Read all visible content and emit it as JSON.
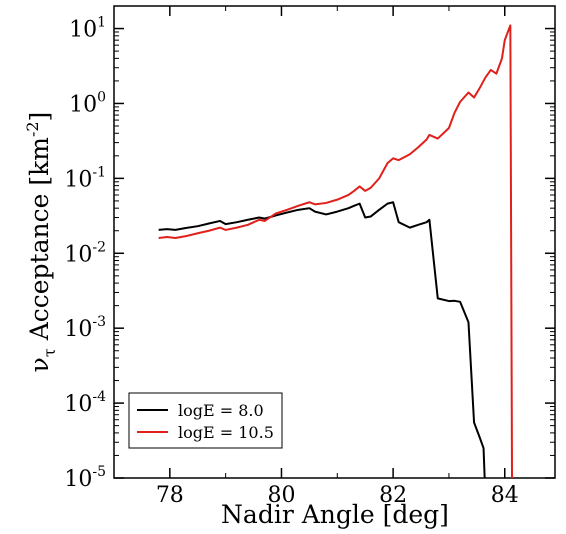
{
  "chart_data": {
    "type": "line",
    "title": "",
    "xlabel": "Nadir Angle [deg]",
    "ylabel": {
      "nu": "ν",
      "tau": "τ",
      "text": " Acceptance [km",
      "sup": "-2",
      "close": "]"
    },
    "xlim": [
      77,
      84.9
    ],
    "x_ticks": [
      78,
      80,
      82,
      84
    ],
    "y_scale": "log",
    "ylim": [
      1e-05,
      20
    ],
    "y_tick_exponents": [
      1,
      0,
      -1,
      -2,
      -3,
      -4,
      -5
    ],
    "y_tick_base": "10",
    "legend_position": "bottom-left",
    "grid": false,
    "series": [
      {
        "name": "logE = 8.0",
        "color": "#000000",
        "x": [
          77.8,
          77.95,
          78.1,
          78.3,
          78.5,
          78.7,
          78.9,
          79.0,
          79.2,
          79.4,
          79.6,
          79.7,
          79.9,
          80.1,
          80.3,
          80.5,
          80.6,
          80.8,
          81.0,
          81.2,
          81.3,
          81.4,
          81.5,
          81.6,
          81.75,
          81.9,
          82.0,
          82.1,
          82.3,
          82.45,
          82.6,
          82.65,
          82.8,
          83.0,
          83.1,
          83.2,
          83.35,
          83.45,
          83.55,
          83.62
        ],
        "y": [
          0.0205,
          0.021,
          0.0205,
          0.0218,
          0.023,
          0.025,
          0.027,
          0.0245,
          0.026,
          0.028,
          0.03,
          0.029,
          0.032,
          0.035,
          0.038,
          0.04,
          0.036,
          0.033,
          0.036,
          0.04,
          0.043,
          0.046,
          0.03,
          0.031,
          0.038,
          0.046,
          0.048,
          0.026,
          0.022,
          0.024,
          0.026,
          0.028,
          0.0025,
          0.0023,
          0.00232,
          0.00225,
          0.0012,
          5.5e-05,
          3.5e-05,
          2.5e-05
        ]
      },
      {
        "name": "logE = 10.5",
        "color": "#e0201b",
        "x": [
          77.8,
          77.95,
          78.1,
          78.3,
          78.5,
          78.7,
          78.9,
          79.0,
          79.2,
          79.4,
          79.6,
          79.7,
          79.9,
          80.1,
          80.3,
          80.5,
          80.6,
          80.8,
          81.0,
          81.2,
          81.3,
          81.4,
          81.5,
          81.6,
          81.75,
          81.9,
          82.0,
          82.1,
          82.3,
          82.45,
          82.6,
          82.65,
          82.8,
          83.0,
          83.1,
          83.2,
          83.35,
          83.45,
          83.55,
          83.65,
          83.75,
          83.85,
          83.95,
          84.0,
          84.1
        ],
        "y": [
          0.016,
          0.0165,
          0.016,
          0.017,
          0.0185,
          0.02,
          0.022,
          0.0205,
          0.022,
          0.024,
          0.028,
          0.027,
          0.034,
          0.038,
          0.043,
          0.048,
          0.045,
          0.047,
          0.052,
          0.06,
          0.068,
          0.078,
          0.068,
          0.075,
          0.1,
          0.16,
          0.185,
          0.175,
          0.21,
          0.26,
          0.33,
          0.38,
          0.34,
          0.47,
          0.75,
          1.05,
          1.4,
          1.2,
          1.6,
          2.2,
          2.8,
          2.5,
          4.0,
          7.0,
          11.0
        ]
      }
    ]
  }
}
